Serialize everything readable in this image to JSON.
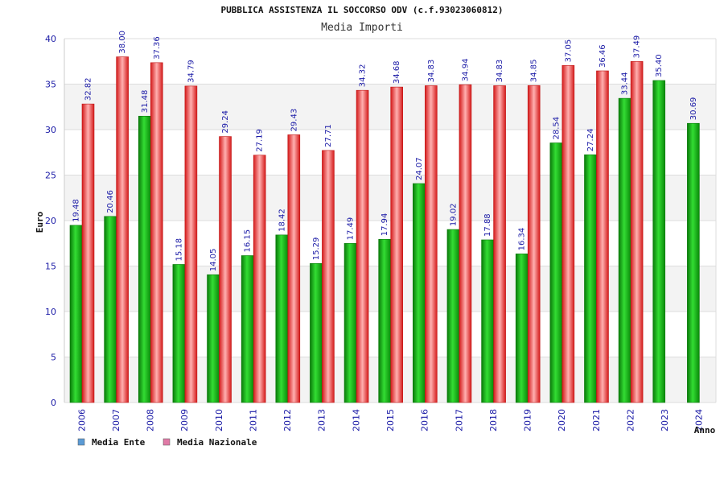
{
  "chart_data": {
    "type": "bar",
    "title": "PUBBLICA ASSISTENZA IL SOCCORSO ODV (c.f.93023060812)",
    "subtitle": "Media Importi",
    "xlabel": "Anno",
    "ylabel": "Euro",
    "ylim": [
      0,
      40
    ],
    "yticks": [
      0,
      5,
      10,
      15,
      20,
      25,
      30,
      35,
      40
    ],
    "grid": true,
    "legend_position": "bottom-left",
    "categories": [
      "2006",
      "2007",
      "2008",
      "2009",
      "2010",
      "2011",
      "2012",
      "2013",
      "2014",
      "2015",
      "2016",
      "2017",
      "2018",
      "2019",
      "2020",
      "2021",
      "2022",
      "2023",
      "2024"
    ],
    "series": [
      {
        "name": "Media Ente",
        "color": "#11b511",
        "legend_color": "#5b9bd5",
        "values": [
          19.48,
          20.46,
          31.48,
          15.18,
          14.05,
          16.15,
          18.42,
          15.29,
          17.49,
          17.94,
          24.07,
          19.02,
          17.88,
          16.34,
          28.54,
          27.24,
          33.44,
          35.4,
          30.69
        ]
      },
      {
        "name": "Media Nazionale",
        "color": "#e83a3a",
        "legend_color": "#e07aa6",
        "values": [
          32.82,
          38.0,
          37.36,
          34.79,
          29.24,
          27.19,
          29.43,
          27.71,
          34.32,
          34.68,
          34.83,
          34.94,
          34.83,
          34.85,
          37.05,
          36.46,
          37.49,
          null,
          null
        ]
      }
    ]
  }
}
